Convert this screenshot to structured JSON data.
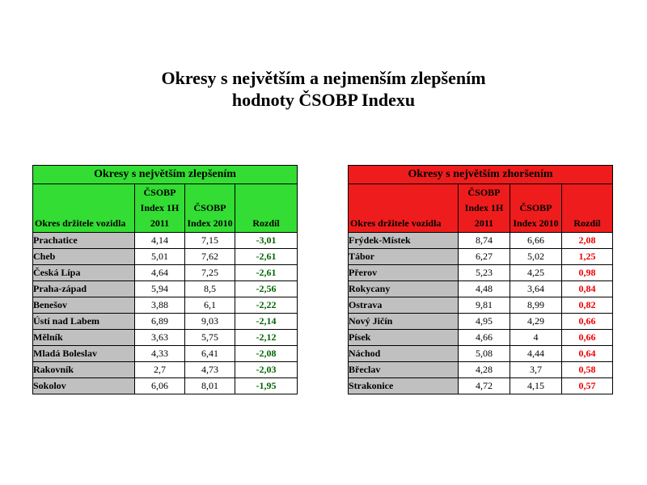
{
  "title": {
    "line1": "Okresy s největším a nejmenším zlepšením",
    "line2": "hodnoty ČSOBP Indexu"
  },
  "colors": {
    "improvement_header": "#33dd33",
    "worsening_header": "#ee1c1c",
    "district_cell": "#c0c0c0",
    "improvement_value": "#006400",
    "worsening_value": "#ee0000"
  },
  "improvement": {
    "caption": "Okresy s největším zlepšením",
    "columns": {
      "district": "Okres držitele vozidla",
      "index_current": "ČSOBP Index 1H 2011",
      "index_prev": "ČSOBP Index 2010",
      "diff": "Rozdíl"
    },
    "rows": [
      {
        "district": "Prachatice",
        "current": "4,14",
        "prev": "7,15",
        "diff": "-3,01"
      },
      {
        "district": "Cheb",
        "current": "5,01",
        "prev": "7,62",
        "diff": "-2,61"
      },
      {
        "district": "Česká Lípa",
        "current": "4,64",
        "prev": "7,25",
        "diff": "-2,61"
      },
      {
        "district": "Praha-západ",
        "current": "5,94",
        "prev": "8,5",
        "diff": "-2,56"
      },
      {
        "district": "Benešov",
        "current": "3,88",
        "prev": "6,1",
        "diff": "-2,22"
      },
      {
        "district": "Ústí nad Labem",
        "current": "6,89",
        "prev": "9,03",
        "diff": "-2,14"
      },
      {
        "district": "Mělník",
        "current": "3,63",
        "prev": "5,75",
        "diff": "-2,12"
      },
      {
        "district": "Mladá Boleslav",
        "current": "4,33",
        "prev": "6,41",
        "diff": "-2,08"
      },
      {
        "district": "Rakovník",
        "current": "2,7",
        "prev": "4,73",
        "diff": "-2,03"
      },
      {
        "district": "Sokolov",
        "current": "6,06",
        "prev": "8,01",
        "diff": "-1,95"
      }
    ]
  },
  "worsening": {
    "caption": "Okresy s největším zhoršením",
    "columns": {
      "district": "Okres držitele vozidla",
      "index_current": "ČSOBP Index 1H 2011",
      "index_prev": "ČSOBP Index 2010",
      "diff": "Rozdíl"
    },
    "rows": [
      {
        "district": "Frýdek-Místek",
        "current": "8,74",
        "prev": "6,66",
        "diff": "2,08"
      },
      {
        "district": "Tábor",
        "current": "6,27",
        "prev": "5,02",
        "diff": "1,25"
      },
      {
        "district": "Přerov",
        "current": "5,23",
        "prev": "4,25",
        "diff": "0,98"
      },
      {
        "district": "Rokycany",
        "current": "4,48",
        "prev": "3,64",
        "diff": "0,84"
      },
      {
        "district": "Ostrava",
        "current": "9,81",
        "prev": "8,99",
        "diff": "0,82"
      },
      {
        "district": "Nový Jičín",
        "current": "4,95",
        "prev": "4,29",
        "diff": "0,66"
      },
      {
        "district": "Písek",
        "current": "4,66",
        "prev": "4",
        "diff": "0,66"
      },
      {
        "district": "Náchod",
        "current": "5,08",
        "prev": "4,44",
        "diff": "0,64"
      },
      {
        "district": "Břeclav",
        "current": "4,28",
        "prev": "3,7",
        "diff": "0,58"
      },
      {
        "district": "Strakonice",
        "current": "4,72",
        "prev": "4,15",
        "diff": "0,57"
      }
    ]
  }
}
